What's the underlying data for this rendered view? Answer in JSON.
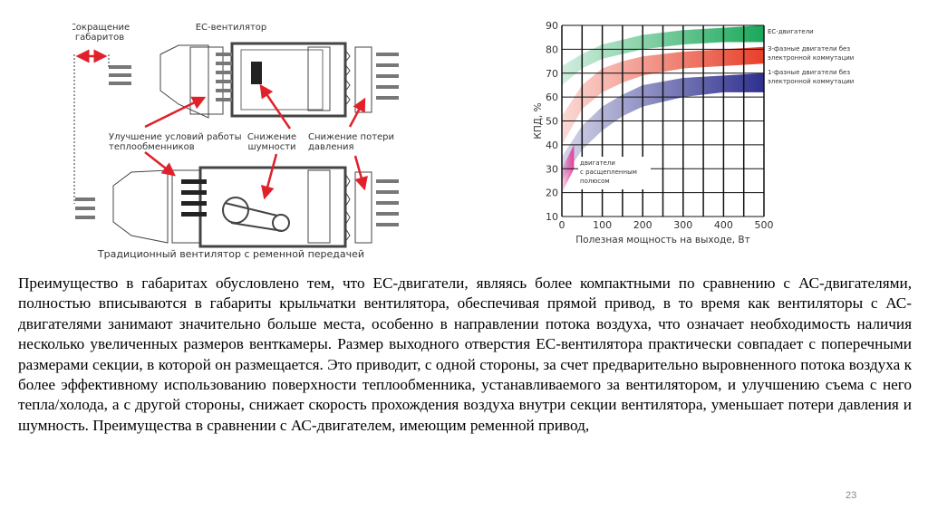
{
  "diagram": {
    "label_size_reduction": [
      "Сокращение",
      "габаритов"
    ],
    "label_ec_fan": "ЕС-вентилятор",
    "label_heat_exchangers": [
      "Улучшение условий работы",
      "теплообменников"
    ],
    "label_noise": [
      "Снижение",
      "шумности"
    ],
    "label_pressure": [
      "Снижение потери",
      "давления"
    ],
    "label_belt_fan": "Традиционный вентилятор с ременной передачей",
    "colors": {
      "arrow": "#e0202a",
      "line": "#333333"
    }
  },
  "chart_data": {
    "type": "area",
    "xlabel": "Полезная мощность на выходе, Вт",
    "ylabel": "КПД, %",
    "xlim": [
      0,
      500
    ],
    "ylim": [
      10,
      90
    ],
    "xticks": [
      0,
      100,
      200,
      300,
      400,
      500
    ],
    "yticks": [
      10,
      20,
      30,
      40,
      50,
      60,
      70,
      80,
      90
    ],
    "grid": true,
    "x": [
      0,
      50,
      100,
      150,
      200,
      300,
      400,
      500
    ],
    "series": [
      {
        "name": "ЕС-двигатели",
        "label_lines": [
          "ЕС-двигатели"
        ],
        "color": "#1aa85a",
        "upper": [
          73,
          78,
          82,
          84,
          86,
          88,
          89,
          90
        ],
        "lower": [
          65,
          72,
          76,
          78,
          80,
          82,
          83,
          83
        ]
      },
      {
        "name": "3-фазные двигатели без электронной коммутации",
        "label_lines": [
          "3-фазные двигатели без",
          "электронной коммутации"
        ],
        "color": "#e8402a",
        "upper": [
          52,
          65,
          72,
          75,
          77,
          79,
          80,
          81
        ],
        "lower": [
          40,
          55,
          62,
          66,
          69,
          72,
          73,
          74
        ]
      },
      {
        "name": "1-фазные двигатели без электронной коммутации",
        "label_lines": [
          "1-фазные двигатели без",
          "электронной коммутации"
        ],
        "color": "#2e2f8f",
        "upper": [
          35,
          48,
          56,
          61,
          65,
          68,
          69,
          70
        ],
        "lower": [
          25,
          38,
          46,
          52,
          56,
          60,
          62,
          62
        ]
      },
      {
        "name": "двигатели с расщепленным полюсом",
        "label_lines": [
          "двигатели",
          "с расщепленным",
          "полюсом"
        ],
        "color": "#e0409a",
        "x": [
          0,
          30
        ],
        "upper": [
          30,
          40
        ],
        "lower": [
          20,
          30
        ]
      }
    ]
  },
  "body_text": "Преимущество в габаритах обусловлено тем, что ЕС-двигатели, являясь более компактными по сравнению с АС-двигателями, полностью вписываются в габариты крыльчатки вентилятора, обеспечивая прямой привод, в то время как вентиляторы с АС-двигателями занимают значительно больше места, особенно в направлении потока воздуха, что означает необходимость наличия несколько увеличенных размеров венткамеры. Размер выходного отверстия ЕС-вентилятора практически совпадает с поперечными размерами секции, в которой он размещается. Это приводит, с одной стороны, за счет предварительно выровненного потока воздуха к более эффективному использованию поверхности теплообменника, устанавливаемого за вентилятором, и улучшению съема с него тепла/холода, а с другой стороны, снижает скорость прохождения воздуха внутри секции вентилятора, уменьшает потери давления и шумность. Преимущества в сравнении с АС-двигателем, имеющим ременной привод,",
  "page_number": "23"
}
